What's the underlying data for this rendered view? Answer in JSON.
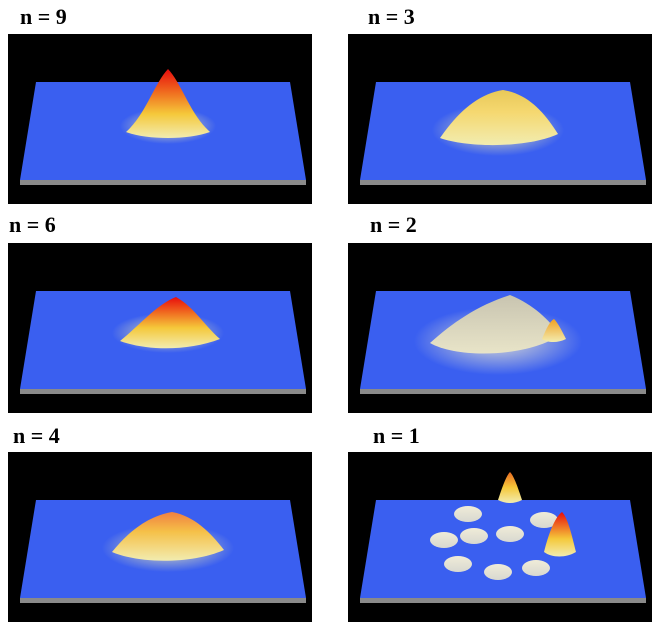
{
  "panels": [
    {
      "label": "n = 9",
      "surface": "single-tall-red-peak"
    },
    {
      "label": "n = 3",
      "surface": "broad-flat-yellow-mound"
    },
    {
      "label": "n = 6",
      "surface": "single-red-peak"
    },
    {
      "label": "n = 2",
      "surface": "broad-mound-with-small-side-peak"
    },
    {
      "label": "n = 4",
      "surface": "broad-orange-mound"
    },
    {
      "label": "n = 1",
      "surface": "ring-of-small-peaks-with-two-tall-peaks"
    }
  ],
  "colors": {
    "background": "#000000",
    "plane": "#3a5ff0",
    "plane_edge": "#8a8a8a",
    "peak_low": "#f2ecb0",
    "peak_mid": "#f5c83a",
    "peak_high": "#e80c0c"
  }
}
